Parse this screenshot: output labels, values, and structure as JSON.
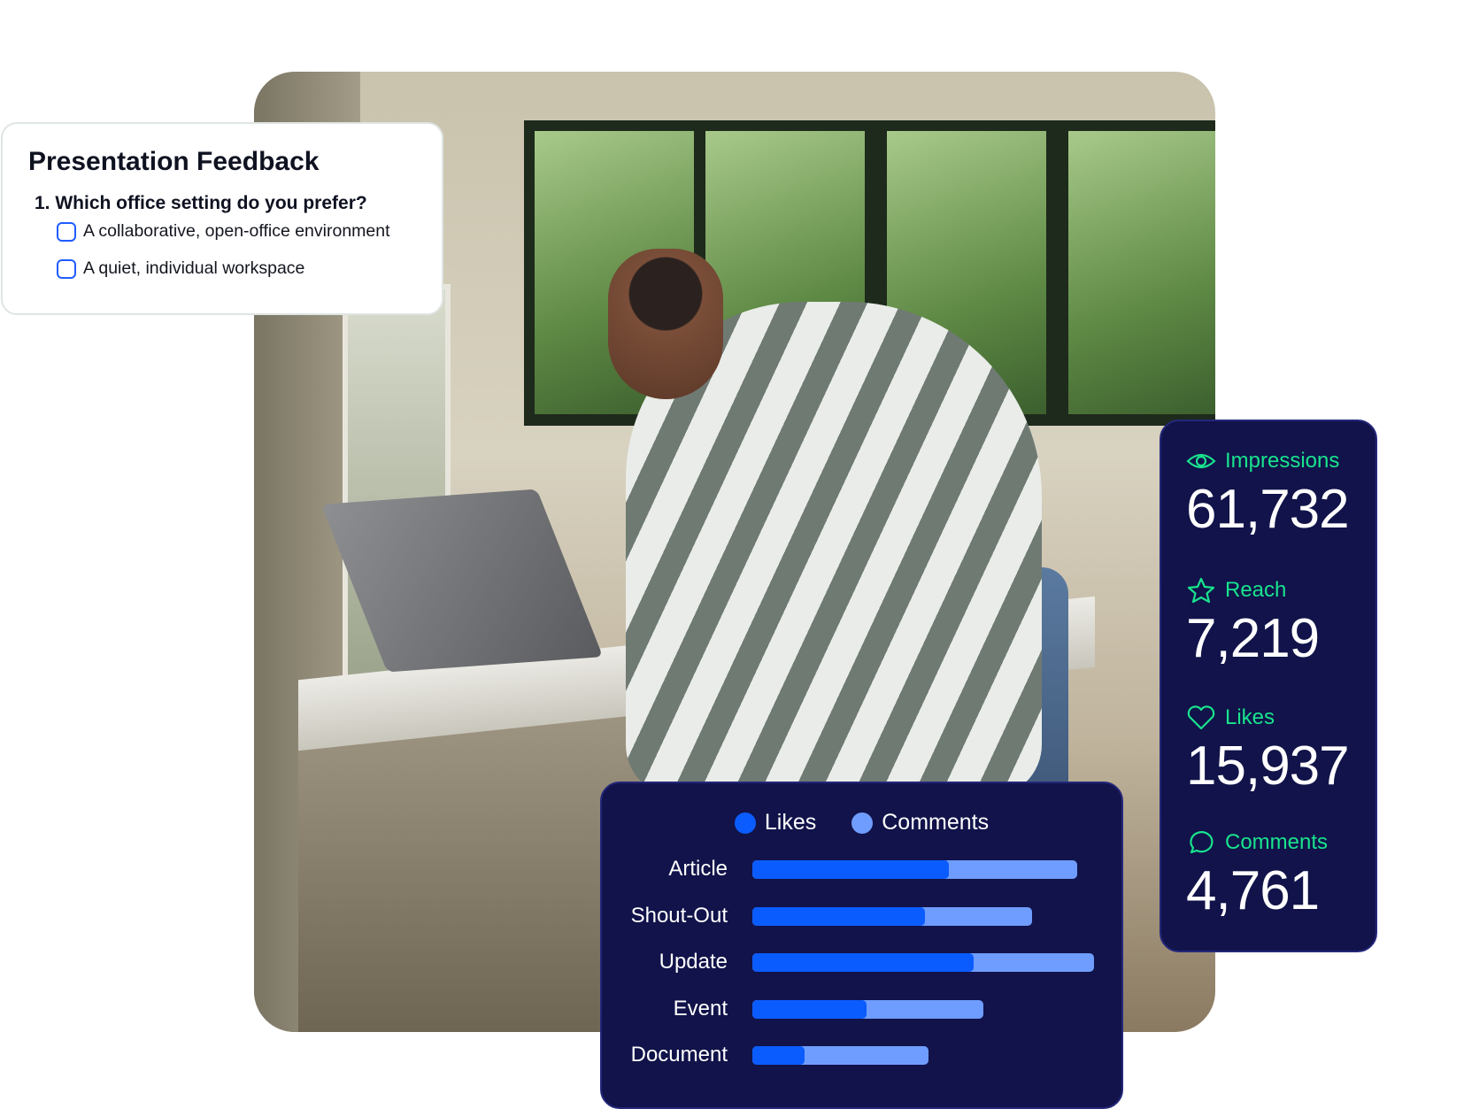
{
  "survey": {
    "title": "Presentation Feedback",
    "question": "1. Which office setting do you prefer?",
    "options": [
      {
        "label": "A collaborative, open-office environment",
        "checked": false
      },
      {
        "label": "A quiet, individual workspace",
        "checked": false
      }
    ]
  },
  "stats": [
    {
      "icon": "eye-icon",
      "label": "Impressions",
      "value": "61,732"
    },
    {
      "icon": "star-icon",
      "label": "Reach",
      "value": "7,219"
    },
    {
      "icon": "heart-icon",
      "label": "Likes",
      "value": "15,937"
    },
    {
      "icon": "comment-icon",
      "label": "Comments",
      "value": "4,761"
    }
  ],
  "colors": {
    "panel": "#11134a",
    "accent_green": "#19e38d",
    "likes": "#0b5cff",
    "comments": "#6f9dff",
    "checkbox": "#1f5cff"
  },
  "chart_data": {
    "type": "bar",
    "orientation": "horizontal",
    "stacked": true,
    "legend_placement": "top",
    "categories": [
      "Article",
      "Shout-Out",
      "Update",
      "Event",
      "Document"
    ],
    "series": [
      {
        "name": "Likes",
        "color": "#0b5cff",
        "values": [
          57,
          50,
          64,
          33,
          15
        ]
      },
      {
        "name": "Comments",
        "color": "#6f9dff",
        "values": [
          37,
          31,
          35,
          34,
          36
        ]
      }
    ]
  }
}
